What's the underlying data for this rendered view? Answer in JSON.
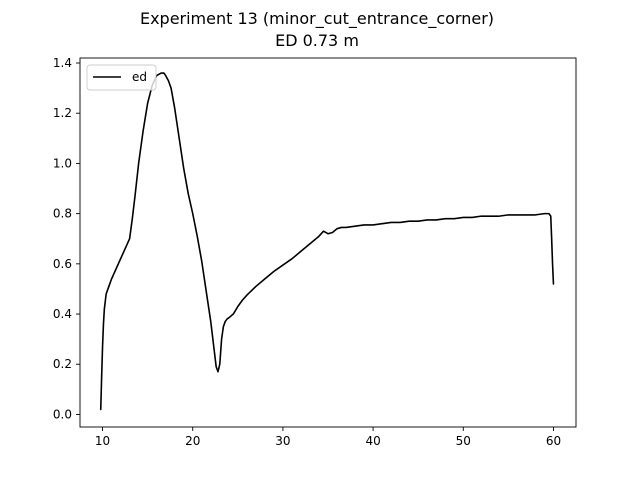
{
  "chart_data": {
    "type": "line",
    "title": "Experiment 13 (minor_cut_entrance_corner)",
    "subtitle": "ED 0.73 m",
    "xlabel": "",
    "ylabel": "",
    "xlim": [
      7.5,
      62.5
    ],
    "ylim": [
      -0.05,
      1.42
    ],
    "xticks": [
      10,
      20,
      30,
      40,
      50,
      60
    ],
    "yticks": [
      0.0,
      0.2,
      0.4,
      0.6,
      0.8,
      1.0,
      1.2,
      1.4
    ],
    "xtick_labels": [
      "10",
      "20",
      "30",
      "40",
      "50",
      "60"
    ],
    "ytick_labels": [
      "0.0",
      "0.2",
      "0.4",
      "0.6",
      "0.8",
      "1.0",
      "1.2",
      "1.4"
    ],
    "grid": false,
    "legend": {
      "position": "top-left",
      "entries": [
        "ed"
      ]
    },
    "series": [
      {
        "name": "ed",
        "color": "#000000",
        "x": [
          9.8,
          9.9,
          10.0,
          10.1,
          10.2,
          10.4,
          10.6,
          10.8,
          11.0,
          11.5,
          12.0,
          12.5,
          13.0,
          13.3,
          13.6,
          14.0,
          14.5,
          15.0,
          15.5,
          16.0,
          16.5,
          16.8,
          17.0,
          17.3,
          17.6,
          18.0,
          18.5,
          19.0,
          19.5,
          20.0,
          20.5,
          21.0,
          21.5,
          22.0,
          22.3,
          22.6,
          22.8,
          23.0,
          23.2,
          23.4,
          23.6,
          23.8,
          24.0,
          24.5,
          25.0,
          25.5,
          26.0,
          27.0,
          28.0,
          29.0,
          30.0,
          31.0,
          32.0,
          33.0,
          34.0,
          34.5,
          35.0,
          35.5,
          36.0,
          36.5,
          37.0,
          38.0,
          39.0,
          40.0,
          41.0,
          42.0,
          43.0,
          44.0,
          45.0,
          46.0,
          47.0,
          48.0,
          49.0,
          50.0,
          51.0,
          52.0,
          53.0,
          54.0,
          55.0,
          56.0,
          57.0,
          58.0,
          59.0,
          59.5,
          59.7,
          59.8,
          59.9,
          60.0
        ],
        "y": [
          0.02,
          0.15,
          0.27,
          0.36,
          0.42,
          0.48,
          0.5,
          0.52,
          0.54,
          0.58,
          0.62,
          0.66,
          0.7,
          0.78,
          0.87,
          1.0,
          1.13,
          1.24,
          1.31,
          1.35,
          1.36,
          1.36,
          1.35,
          1.33,
          1.3,
          1.22,
          1.1,
          0.98,
          0.88,
          0.8,
          0.71,
          0.61,
          0.49,
          0.37,
          0.28,
          0.19,
          0.17,
          0.2,
          0.3,
          0.35,
          0.37,
          0.38,
          0.385,
          0.4,
          0.43,
          0.455,
          0.475,
          0.51,
          0.54,
          0.57,
          0.595,
          0.62,
          0.65,
          0.68,
          0.71,
          0.73,
          0.72,
          0.725,
          0.74,
          0.745,
          0.745,
          0.75,
          0.755,
          0.755,
          0.76,
          0.765,
          0.765,
          0.77,
          0.77,
          0.775,
          0.775,
          0.78,
          0.78,
          0.785,
          0.785,
          0.79,
          0.79,
          0.79,
          0.795,
          0.795,
          0.795,
          0.795,
          0.8,
          0.8,
          0.79,
          0.7,
          0.6,
          0.52
        ]
      }
    ]
  }
}
